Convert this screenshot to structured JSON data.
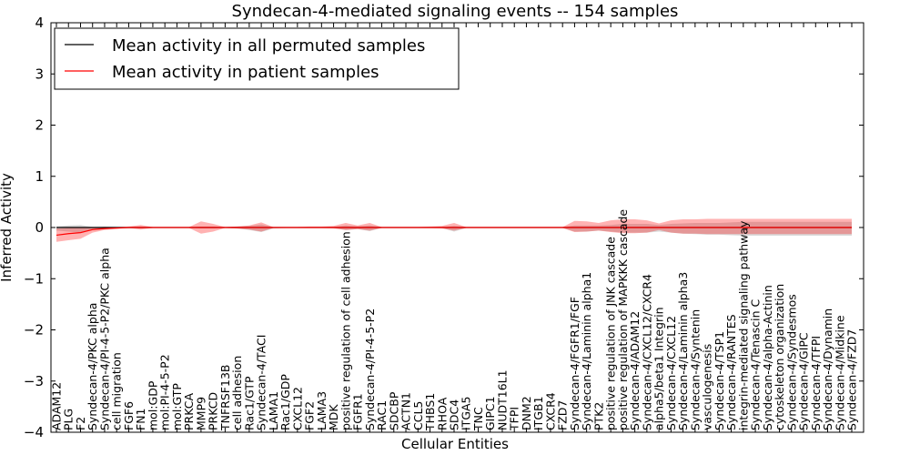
{
  "chart_data": {
    "type": "line",
    "title": "Syndecan-4-mediated signaling events -- 154 samples",
    "xlabel": "Cellular Entities",
    "ylabel": "Inferred Activity",
    "ylim": [
      -4,
      4
    ],
    "yticks": [
      4,
      3,
      2,
      1,
      0,
      -1,
      -2,
      -3,
      -4
    ],
    "ytick_labels": [
      "4",
      "3",
      "2",
      "1",
      "0",
      "−1",
      "−2",
      "−3",
      "−4"
    ],
    "categories": [
      "ADAM12",
      "PLG",
      "F2",
      "Syndecan-4/PKC alpha",
      "Syndecan-4/PI-4-5-P2/PKC alpha",
      "cell migration",
      "FGF6",
      "FN1",
      "mol:GDP",
      "mol:PI-4-5-P2",
      "mol:GTP",
      "PRKCA",
      "MMP9",
      "PRKCD",
      "TNFRSF13B",
      "cell adhesion",
      "Rac1/GTP",
      "Syndecan-4/TACI",
      "LAMA1",
      "Rac1/GDP",
      "CXCL12",
      "FGF2",
      "LAMA3",
      "MDK",
      "positive regulation of cell adhesion",
      "FGFR1",
      "Syndecan-4/PI-4-5-P2",
      "RAC1",
      "SDCBP",
      "ACTN1",
      "CCL5",
      "THBS1",
      "RHOA",
      "SDC4",
      "ITGA5",
      "TNC",
      "GIPC1",
      "NUDT16L1",
      "TFPI",
      "DNM2",
      "ITGB1",
      "CXCR4",
      "FZD7",
      "Syndecan-4/FGFR1/FGF",
      "Syndecan-4/Laminin alpha1",
      "PTK2",
      "positive regulation of JNK cascade",
      "positive regulation of MAPKKK cascade",
      "Syndecan-4/ADAM12",
      "Syndecan-4/CXCL12/CXCR4",
      "alpha5/beta1 Integrin",
      "Syndecan-4/CXCL12",
      "Syndecan-4/Laminin alpha3",
      "Syndecan-4/Syntenin",
      "vasculogenesis",
      "Syndecan-4/TSP1",
      "Syndecan-4/RANTES",
      "integrin-mediated signaling pathway",
      "Syndecan-4/Tenascin C",
      "Syndecan-4/alpha-Actinin",
      "cytoskeleton organization",
      "Syndecan-4/Syndesmos",
      "Syndecan-4/GIPC",
      "Syndecan-4/TFPI",
      "Syndecan-4/Dynamin",
      "Syndecan-4/Midkine",
      "Syndecan-4/FZD7"
    ],
    "series": [
      {
        "name": "Mean activity in all permuted samples",
        "color": "#000000",
        "values": [
          0,
          0,
          0,
          0,
          0,
          0,
          0,
          0,
          0,
          0,
          0,
          0,
          0,
          0,
          0,
          0,
          0,
          0,
          0,
          0,
          0,
          0,
          0,
          0,
          0,
          0,
          0,
          0,
          0,
          0,
          0,
          0,
          0,
          0,
          0,
          0,
          0,
          0,
          0,
          0,
          0,
          0,
          0,
          0,
          0,
          0,
          0,
          0,
          0,
          0,
          0,
          0,
          0,
          0,
          0,
          0,
          0,
          0,
          0,
          0,
          0,
          0,
          0,
          0,
          0,
          0,
          0
        ],
        "band_upper": [
          0.02,
          0.04,
          0.05,
          0.01,
          0.02,
          0.01,
          0.01,
          0.02,
          0.01,
          0.01,
          0.01,
          0.01,
          0.02,
          0.02,
          0.01,
          0.02,
          0.03,
          0.06,
          0.01,
          0.01,
          0.01,
          0.01,
          0.01,
          0.01,
          0.04,
          0.02,
          0.04,
          0.01,
          0.01,
          0.01,
          0.01,
          0.01,
          0.01,
          0.03,
          0.01,
          0.01,
          0.01,
          0.01,
          0.01,
          0.01,
          0.01,
          0.01,
          0.01,
          0.04,
          0.04,
          0.04,
          0.05,
          0.07,
          0.07,
          0.07,
          0.05,
          0.07,
          0.08,
          0.09,
          0.09,
          0.09,
          0.1,
          0.11,
          0.11,
          0.11,
          0.11,
          0.11,
          0.11,
          0.11,
          0.11,
          0.11,
          0.11
        ],
        "band_lower": [
          -0.06,
          -0.08,
          -0.1,
          -0.02,
          -0.02,
          -0.02,
          -0.02,
          -0.02,
          -0.01,
          -0.01,
          -0.01,
          -0.01,
          -0.02,
          -0.02,
          -0.01,
          -0.02,
          -0.05,
          -0.09,
          -0.02,
          -0.01,
          -0.01,
          -0.01,
          -0.01,
          -0.01,
          -0.05,
          -0.03,
          -0.07,
          -0.01,
          -0.01,
          -0.01,
          -0.01,
          -0.01,
          -0.01,
          -0.08,
          -0.01,
          -0.01,
          -0.01,
          -0.01,
          -0.01,
          -0.01,
          -0.01,
          -0.01,
          -0.01,
          -0.08,
          -0.08,
          -0.06,
          -0.08,
          -0.1,
          -0.1,
          -0.1,
          -0.08,
          -0.1,
          -0.12,
          -0.13,
          -0.14,
          -0.14,
          -0.15,
          -0.16,
          -0.16,
          -0.16,
          -0.16,
          -0.16,
          -0.16,
          -0.16,
          -0.16,
          -0.16,
          -0.16
        ]
      },
      {
        "name": "Mean activity in patient samples",
        "color": "#ff0000",
        "values": [
          -0.15,
          -0.12,
          -0.1,
          -0.04,
          -0.02,
          -0.01,
          0,
          0,
          0,
          0,
          0,
          0,
          0,
          0,
          0,
          0,
          0,
          0,
          0,
          0,
          0,
          0,
          0,
          0,
          0,
          0,
          0,
          0,
          0,
          0,
          0,
          0,
          0,
          0,
          0,
          0,
          0,
          0,
          0,
          0,
          0,
          0,
          0,
          0,
          0,
          0,
          0,
          0,
          0,
          0,
          0,
          0,
          0,
          0,
          0,
          0,
          0,
          0,
          0,
          0,
          0,
          0,
          0,
          0,
          0,
          0,
          0
        ],
        "band_upper": [
          -0.02,
          -0.01,
          0,
          0,
          0,
          0.01,
          0.02,
          0.05,
          0.01,
          0.01,
          0.01,
          0.01,
          0.12,
          0.07,
          0.01,
          0.02,
          0.04,
          0.1,
          0.01,
          0.01,
          0.01,
          0.02,
          0.02,
          0.03,
          0.09,
          0.04,
          0.09,
          0.01,
          0.01,
          0.01,
          0.01,
          0.02,
          0.03,
          0.09,
          0.01,
          0.01,
          0.01,
          0.01,
          0.01,
          0.01,
          0.01,
          0.01,
          0.01,
          0.13,
          0.12,
          0.09,
          0.14,
          0.16,
          0.16,
          0.14,
          0.08,
          0.14,
          0.16,
          0.16,
          0.17,
          0.17,
          0.17,
          0.17,
          0.17,
          0.17,
          0.17,
          0.17,
          0.17,
          0.17,
          0.17,
          0.17,
          0.17
        ],
        "band_lower": [
          -0.28,
          -0.25,
          -0.22,
          -0.1,
          -0.05,
          -0.03,
          -0.01,
          -0.04,
          -0.01,
          -0.01,
          -0.01,
          -0.01,
          -0.12,
          -0.08,
          -0.01,
          -0.02,
          -0.04,
          -0.08,
          -0.01,
          -0.01,
          -0.01,
          -0.01,
          -0.01,
          -0.02,
          -0.05,
          -0.03,
          -0.06,
          -0.01,
          -0.01,
          -0.01,
          -0.01,
          -0.01,
          -0.02,
          -0.06,
          -0.01,
          -0.01,
          -0.01,
          -0.01,
          -0.01,
          -0.01,
          -0.01,
          -0.01,
          -0.01,
          -0.09,
          -0.08,
          -0.06,
          -0.09,
          -0.11,
          -0.11,
          -0.1,
          -0.05,
          -0.1,
          -0.12,
          -0.12,
          -0.13,
          -0.13,
          -0.13,
          -0.13,
          -0.13,
          -0.13,
          -0.13,
          -0.13,
          -0.13,
          -0.13,
          -0.13,
          -0.13,
          -0.13
        ]
      }
    ],
    "legend": {
      "position": "top-left",
      "entries": [
        "Mean activity in all permuted samples",
        "Mean activity in patient samples"
      ]
    },
    "grid": false
  }
}
